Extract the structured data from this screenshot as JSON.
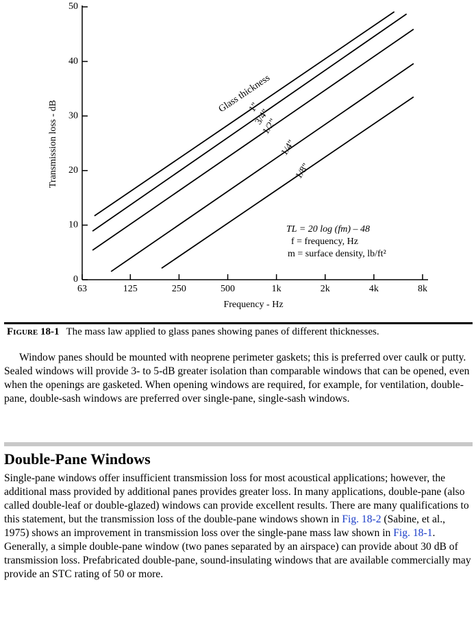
{
  "chart_data": {
    "type": "line",
    "xlabel": "Frequency - Hz",
    "ylabel": "Transmission loss - dB",
    "xscale": "log",
    "xlim": [
      63,
      8000
    ],
    "ylim": [
      0,
      50
    ],
    "xticks": [
      63,
      125,
      250,
      500,
      {
        "value": 1000,
        "label": "1k"
      },
      {
        "value": 2000,
        "label": "2k"
      },
      {
        "value": 4000,
        "label": "4k"
      },
      {
        "value": 8000,
        "label": "8k"
      }
    ],
    "yticks": [
      0,
      10,
      20,
      30,
      40,
      50
    ],
    "legend_title": "Glass thickness",
    "annotations": [
      "TL = 20 log (fm) – 48",
      "f = frequency, Hz",
      "m = surface density, lb/ft²"
    ],
    "series": [
      {
        "name": "1\"",
        "color": "#000000",
        "x": [
          75,
          5350
        ],
        "values": [
          11.7,
          49.1
        ]
      },
      {
        "name": "3/4\"",
        "color": "#000000",
        "x": [
          73,
          6370
        ],
        "values": [
          8.9,
          48.7
        ]
      },
      {
        "name": "1/2\"",
        "color": "#000000",
        "x": [
          73,
          7040
        ],
        "values": [
          5.4,
          45.9
        ]
      },
      {
        "name": "1/4\"",
        "color": "#000000",
        "x": [
          95,
          7040
        ],
        "values": [
          1.5,
          39.6
        ]
      },
      {
        "name": "1/8\"",
        "color": "#000000",
        "x": [
          195,
          7040
        ],
        "values": [
          2.1,
          33.5
        ]
      }
    ]
  },
  "caption": {
    "label": "Figure 18-1",
    "text": "The mass law applied to glass panes showing panes of different thicknesses."
  },
  "paragraph1": "Window panes should be mounted with neoprene perimeter gaskets; this is preferred over caulk or putty. Sealed windows will provide 3- to 5-dB greater isolation than comparable windows that can be opened, even when the openings are gasketed. When opening windows are required, for example, for ventilation, double-pane, double-sash windows are preferred over single-pane, single-sash windows.",
  "heading": "Double-Pane Windows",
  "paragraph2": [
    "Single-pane windows offer insufficient transmission loss for most acoustical applications; however, the additional mass provided by additional panes provides greater loss. In many applications, double-pane (also called double-leaf or double-glazed) windows can provide excellent results. There are many qualifications to this statement, but the transmission loss of the double-pane windows shown in ",
    "Fig. 18-2",
    " (Sabine, et al., 1975) shows an improvement in transmission loss over the single-pane mass law shown in ",
    "Fig. 18-1",
    ". Generally, a simple double-pane window (two panes separated by an airspace) can provide about 30 dB of transmission loss. Prefabricated double-pane, sound-insulating windows that are available commercially may provide an STC rating of 50 or more."
  ]
}
